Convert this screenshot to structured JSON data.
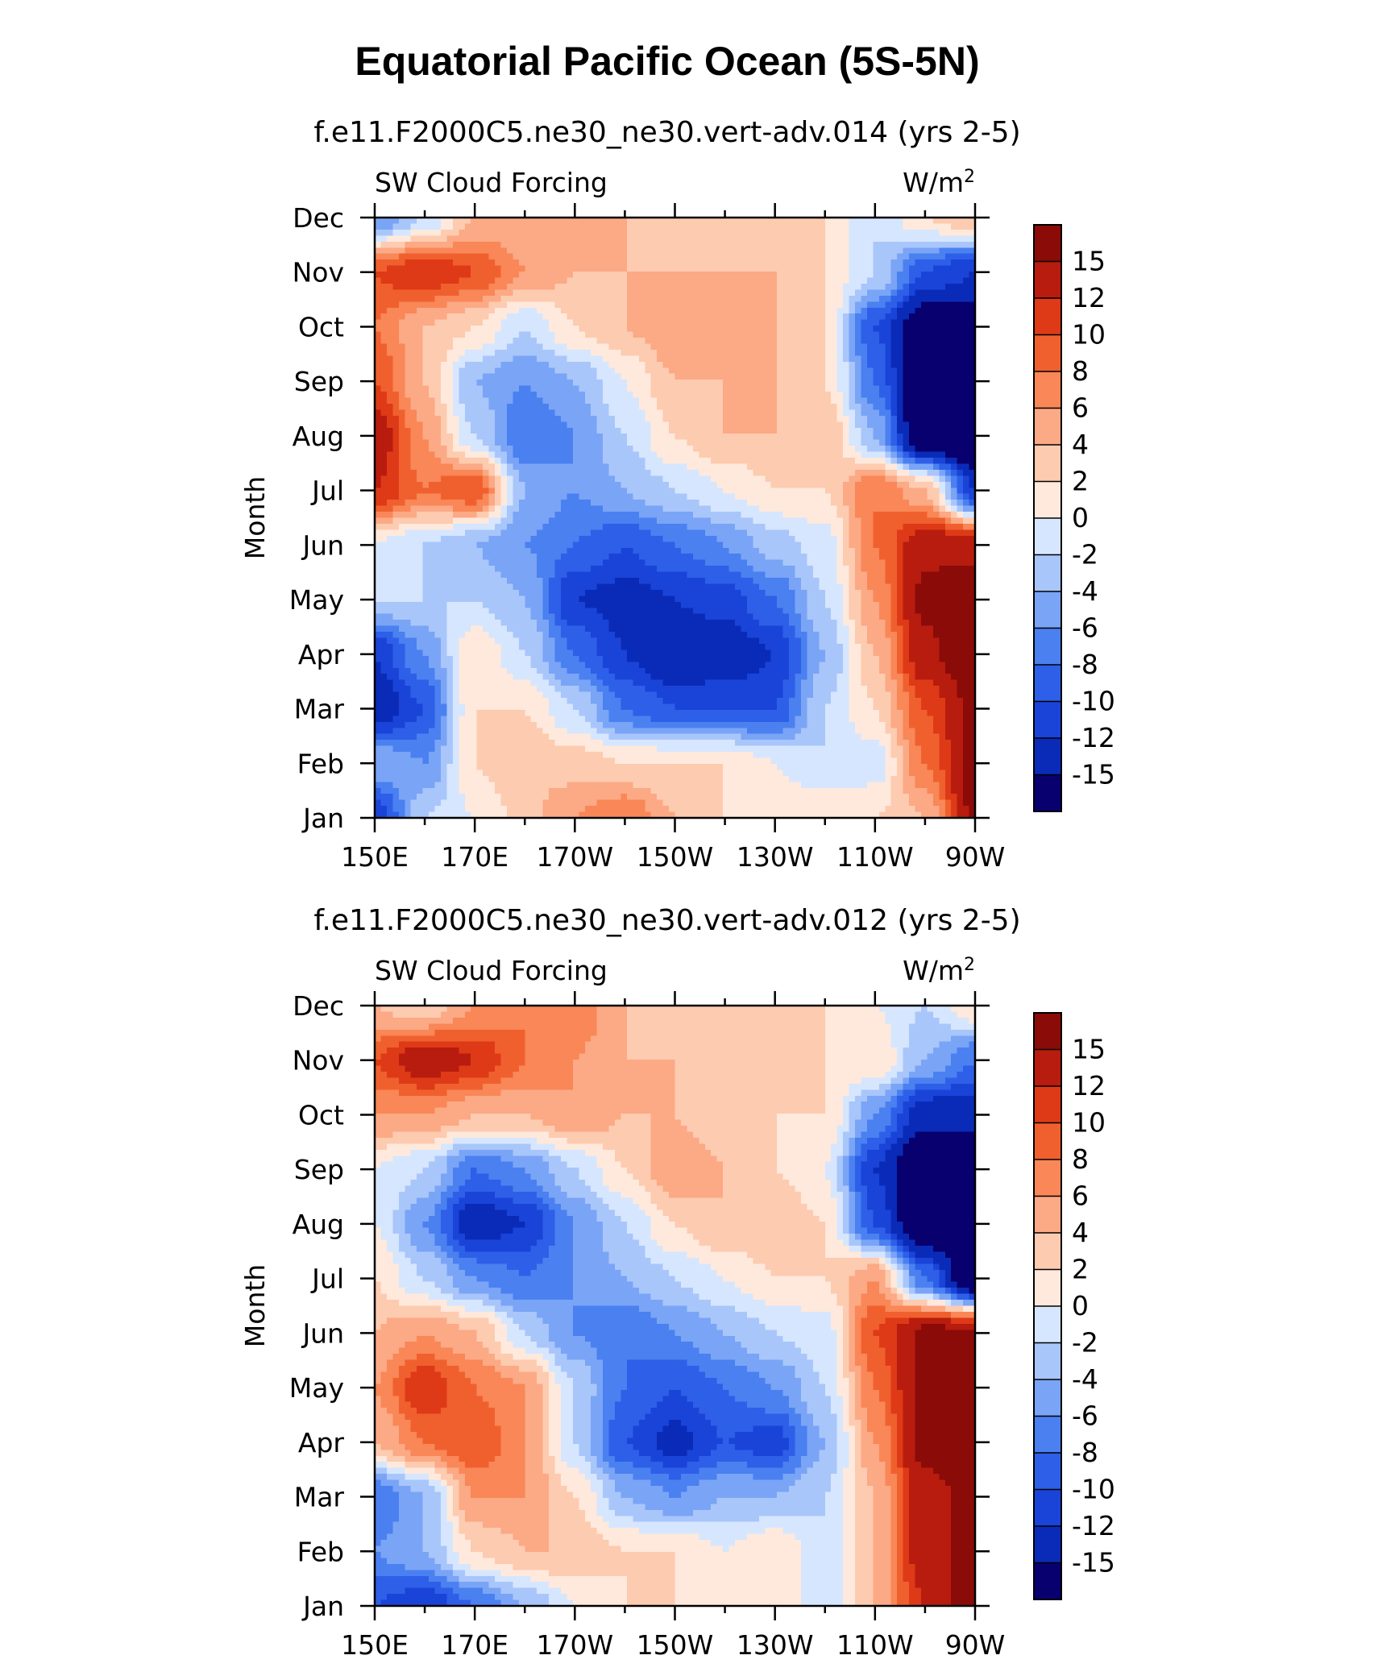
{
  "figure_title": "Equatorial Pacific Ocean (5S-5N)",
  "colors": {
    "levels": [
      "#08006e",
      "#0a2bb8",
      "#1a44d8",
      "#2e5fe8",
      "#4a80f0",
      "#7aa4f6",
      "#a9c6fb",
      "#d6e6fe",
      "#fee9dc",
      "#fdcbb0",
      "#fca985",
      "#f98757",
      "#f0602e",
      "#de3a17",
      "#b81c0e",
      "#8a0b08"
    ]
  },
  "chart_data": [
    {
      "type": "heatmap",
      "title": "f.e11.F2000C5.ne30_ne30.vert-adv.014 (yrs 2-5)",
      "left_label": "SW Cloud Forcing",
      "units_label": "W/m",
      "units_sup": "2",
      "xlabel": "",
      "ylabel": "Month",
      "x_ticks": [
        "150E",
        "170E",
        "170W",
        "150W",
        "130W",
        "110W",
        "90W"
      ],
      "y_ticks": [
        "Jan",
        "Feb",
        "Mar",
        "Apr",
        "May",
        "Jun",
        "Jul",
        "Aug",
        "Sep",
        "Oct",
        "Nov",
        "Dec"
      ],
      "colorbar_labels": [
        "15",
        "12",
        "10",
        "8",
        "6",
        "4",
        "2",
        "0",
        "-2",
        "-4",
        "-6",
        "-8",
        "-10",
        "-12",
        "-15"
      ],
      "longitudes": [
        150,
        160,
        170,
        180,
        190,
        200,
        210,
        220,
        230,
        240,
        250,
        260,
        270
      ],
      "months": [
        "Jan",
        "Feb",
        "Mar",
        "Apr",
        "May",
        "Jun",
        "Jul",
        "Aug",
        "Sep",
        "Oct",
        "Nov",
        "Dec"
      ],
      "values": [
        [
          -12,
          -2,
          0,
          3,
          6,
          8,
          4,
          2,
          2,
          2,
          2,
          4,
          16
        ],
        [
          -4,
          -6,
          2,
          4,
          3,
          2,
          2,
          2,
          0,
          -2,
          -1,
          8,
          16
        ],
        [
          -14,
          -10,
          2,
          2,
          -2,
          -8,
          -10,
          -10,
          -10,
          -2,
          2,
          10,
          16
        ],
        [
          -12,
          -6,
          2,
          -2,
          -8,
          -12,
          -15,
          -14,
          -12,
          -4,
          4,
          14,
          18
        ],
        [
          -2,
          -2,
          -2,
          -4,
          -12,
          -13,
          -12,
          -11,
          -8,
          -2,
          6,
          16,
          18
        ],
        [
          0,
          -2,
          -4,
          -6,
          -8,
          -10,
          -8,
          -6,
          -3,
          -1,
          8,
          14,
          14
        ],
        [
          12,
          8,
          10,
          -4,
          -6,
          -4,
          -2,
          0,
          2,
          2,
          8,
          4,
          -12
        ],
        [
          14,
          6,
          -2,
          -8,
          -6,
          -2,
          2,
          4,
          4,
          4,
          -4,
          -20,
          -20
        ],
        [
          10,
          4,
          -4,
          -6,
          -4,
          0,
          4,
          4,
          4,
          2,
          -8,
          -20,
          -20
        ],
        [
          8,
          4,
          2,
          -2,
          2,
          4,
          6,
          6,
          4,
          2,
          -10,
          -18,
          -18
        ],
        [
          10,
          12,
          10,
          6,
          4,
          4,
          4,
          4,
          4,
          2,
          -2,
          -10,
          -12
        ],
        [
          -6,
          -2,
          4,
          4,
          6,
          4,
          2,
          4,
          2,
          2,
          -2,
          2,
          4
        ]
      ]
    },
    {
      "type": "heatmap",
      "title": "f.e11.F2000C5.ne30_ne30.vert-adv.012 (yrs 2-5)",
      "left_label": "SW Cloud Forcing",
      "units_label": "W/m",
      "units_sup": "2",
      "xlabel": "",
      "ylabel": "Month",
      "x_ticks": [
        "150E",
        "170E",
        "170W",
        "150W",
        "130W",
        "110W",
        "90W"
      ],
      "y_ticks": [
        "Jan",
        "Feb",
        "Mar",
        "Apr",
        "May",
        "Jun",
        "Jul",
        "Aug",
        "Sep",
        "Oct",
        "Nov",
        "Dec"
      ],
      "colorbar_labels": [
        "15",
        "12",
        "10",
        "8",
        "6",
        "4",
        "2",
        "0",
        "-2",
        "-4",
        "-6",
        "-8",
        "-10",
        "-12",
        "-15"
      ],
      "longitudes": [
        150,
        160,
        170,
        180,
        190,
        200,
        210,
        220,
        230,
        240,
        250,
        260,
        270
      ],
      "months": [
        "Jan",
        "Feb",
        "Mar",
        "Apr",
        "May",
        "Jun",
        "Jul",
        "Aug",
        "Sep",
        "Oct",
        "Nov",
        "Dec"
      ],
      "values": [
        [
          -10,
          -12,
          -8,
          -4,
          0,
          2,
          2,
          2,
          2,
          -2,
          4,
          12,
          18
        ],
        [
          -6,
          -4,
          2,
          4,
          4,
          2,
          2,
          0,
          2,
          -2,
          4,
          14,
          16
        ],
        [
          -8,
          -4,
          6,
          6,
          2,
          -4,
          -6,
          -4,
          -4,
          -2,
          4,
          14,
          16
        ],
        [
          4,
          8,
          10,
          6,
          -2,
          -10,
          -13,
          -10,
          -11,
          -4,
          6,
          16,
          18
        ],
        [
          6,
          12,
          8,
          6,
          -2,
          -8,
          -10,
          -8,
          -6,
          -2,
          8,
          16,
          18
        ],
        [
          4,
          6,
          4,
          -2,
          -6,
          -8,
          -6,
          -4,
          -2,
          -1,
          10,
          16,
          16
        ],
        [
          2,
          -2,
          -6,
          -8,
          -6,
          -4,
          -2,
          0,
          2,
          2,
          6,
          -8,
          -20
        ],
        [
          0,
          -6,
          -14,
          -12,
          -6,
          -2,
          2,
          4,
          4,
          2,
          -10,
          -20,
          -20
        ],
        [
          0,
          -2,
          -8,
          -6,
          -2,
          2,
          6,
          4,
          2,
          0,
          -12,
          -20,
          -20
        ],
        [
          6,
          6,
          4,
          4,
          6,
          4,
          4,
          2,
          2,
          2,
          -6,
          -14,
          -14
        ],
        [
          10,
          14,
          12,
          8,
          6,
          4,
          4,
          2,
          2,
          2,
          2,
          -4,
          -8
        ],
        [
          4,
          2,
          6,
          8,
          8,
          4,
          2,
          2,
          2,
          2,
          0,
          -2,
          2
        ]
      ]
    }
  ]
}
